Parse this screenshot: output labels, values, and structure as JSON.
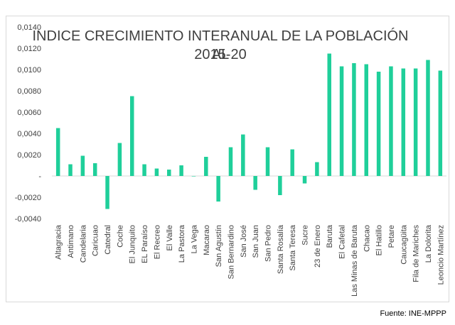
{
  "chart_data": {
    "type": "bar",
    "title_lines": [
      "INDICE CRECIMIENTO INTERANUAL DE LA POBLACIÓN AL",
      "2015-20"
    ],
    "categories": [
      "Altagracia",
      "Antimano",
      "Candelaria",
      "Caricuao",
      "Catedral",
      "Coche",
      "El Junquito",
      "EL Paraíso",
      "El Recreo",
      "El Valle",
      "La Pastora",
      "La Vega",
      "Macarao",
      "San Agustín",
      "San Bernardino",
      "San José",
      "San Juan",
      "San Pedro",
      "Santa Rosalía",
      "Santa Teresa",
      "Sucre",
      "23 de Enero",
      "Baruta",
      "El Cafetal",
      "Las Minas de Baruta",
      "Chacao",
      "El Hatillo",
      "Petare",
      "Caucagüita",
      "Fila de Mariches",
      "La Dolorita",
      "Leoncio Martínez"
    ],
    "values": [
      0.0045,
      0.0011,
      0.0019,
      0.0012,
      -0.0031,
      0.0031,
      0.0075,
      0.0011,
      0.0007,
      0.0006,
      0.001,
      0.0,
      0.0018,
      -0.0024,
      0.0027,
      0.0039,
      -0.0013,
      0.0027,
      -0.0018,
      0.0025,
      -0.0007,
      0.0013,
      0.0115,
      0.0103,
      0.0106,
      0.0105,
      0.0098,
      0.0103,
      0.0101,
      0.0101,
      0.0109,
      0.0099
    ],
    "ylim": [
      -0.004,
      0.014
    ],
    "yticks": [
      -0.004,
      -0.002,
      0,
      0.002,
      0.004,
      0.006,
      0.008,
      0.01,
      0.012,
      0.014
    ],
    "ytick_labels": [
      "-0,0040",
      "-0,0020",
      "-",
      "0,0020",
      "0,0040",
      "0,0060",
      "0,0080",
      "0,0100",
      "0,0120",
      "0,0140"
    ],
    "bar_color": "#1fcf9a",
    "xlabel": "",
    "ylabel": ""
  },
  "source_note": "Fuente: INE-MPPP"
}
